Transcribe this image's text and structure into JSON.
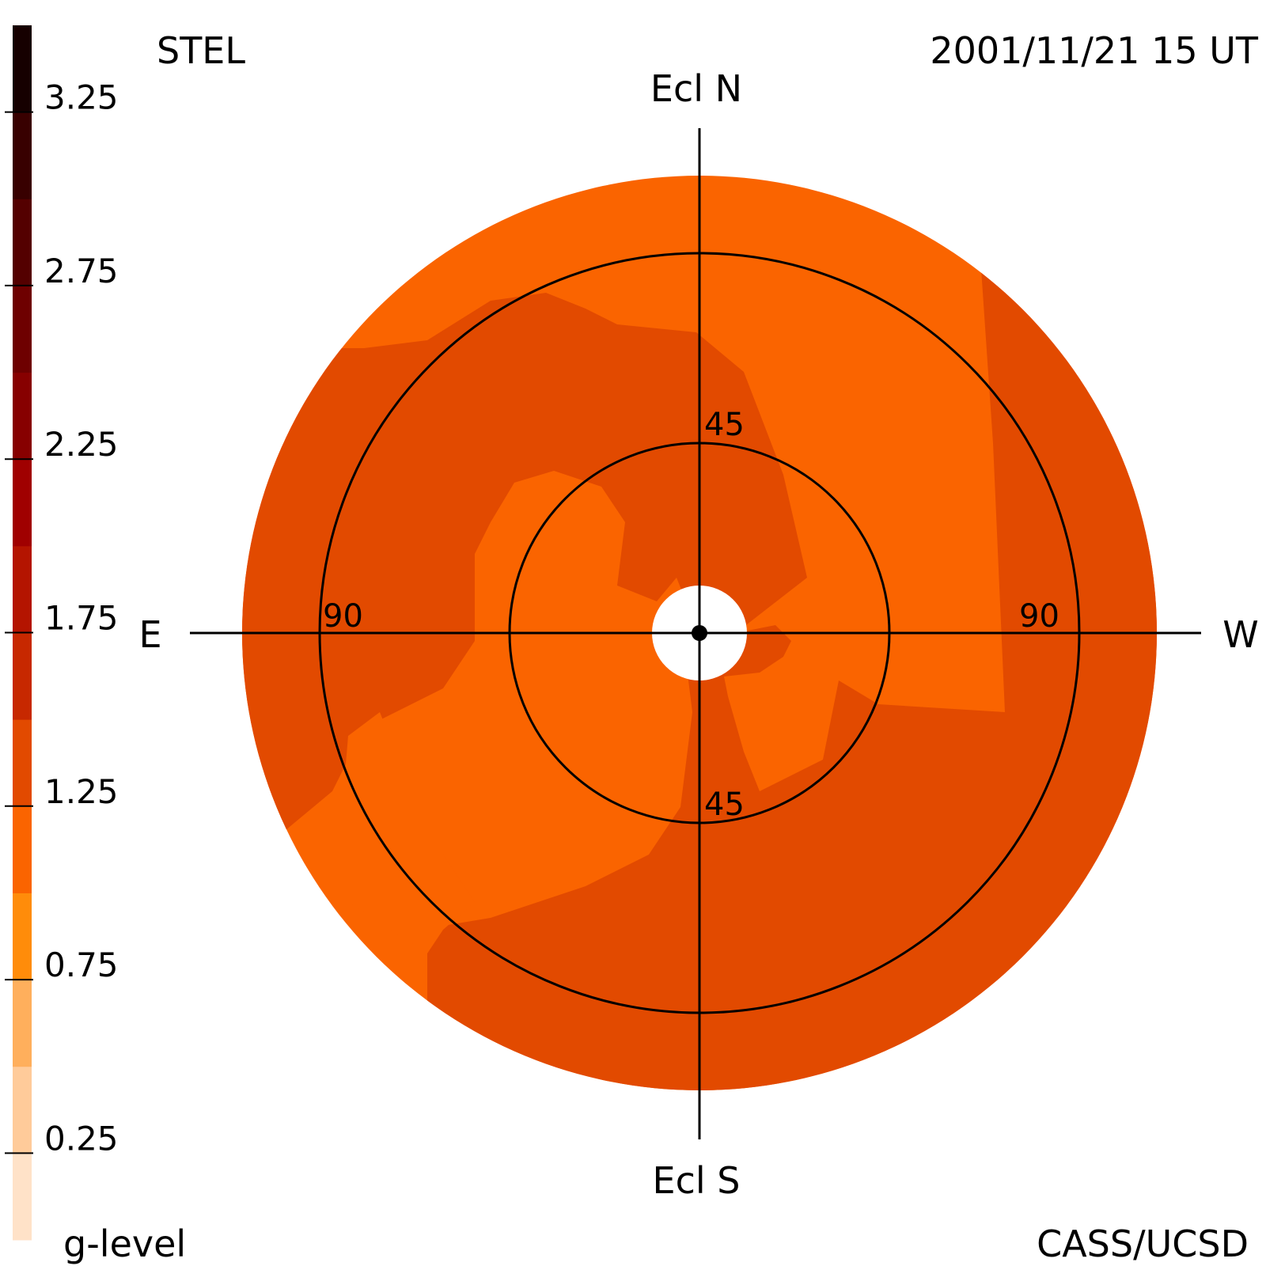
{
  "header": {
    "instrument": "STEL",
    "timestamp": "2001/11/21 15 UT"
  },
  "footer": {
    "colorbar_label": "g-level",
    "credit": "CASS/UCSD"
  },
  "directions": {
    "north": "Ecl N",
    "south": "Ecl S",
    "east": "E",
    "west": "W"
  },
  "colors": {
    "low_level": "#fa6400",
    "high_level": "#e24a00",
    "axes": "#000000"
  },
  "chart_data": {
    "type": "heatmap",
    "projection": "polar sky map (fisheye), ecliptic north up, east left",
    "colorbar": {
      "label": "g-level",
      "range": [
        0,
        3.5
      ],
      "ticks": [
        {
          "value": 3.25,
          "label": "3.25"
        },
        {
          "value": 2.75,
          "label": "2.75"
        },
        {
          "value": 2.25,
          "label": "2.25"
        },
        {
          "value": 1.75,
          "label": "1.75"
        },
        {
          "value": 1.25,
          "label": "1.25"
        },
        {
          "value": 0.75,
          "label": "0.75"
        },
        {
          "value": 0.25,
          "label": "0.25"
        }
      ],
      "bands": [
        {
          "from": 0.0,
          "to": 0.25,
          "color": "#ffe2c8"
        },
        {
          "from": 0.25,
          "to": 0.5,
          "color": "#ffcb9a"
        },
        {
          "from": 0.5,
          "to": 0.75,
          "color": "#ffaf5c"
        },
        {
          "from": 0.75,
          "to": 1.0,
          "color": "#ff8c0a"
        },
        {
          "from": 1.0,
          "to": 1.25,
          "color": "#fa6400"
        },
        {
          "from": 1.25,
          "to": 1.5,
          "color": "#e24a00"
        },
        {
          "from": 1.5,
          "to": 1.75,
          "color": "#c72800"
        },
        {
          "from": 1.75,
          "to": 2.0,
          "color": "#b41400"
        },
        {
          "from": 2.0,
          "to": 2.25,
          "color": "#a00000"
        },
        {
          "from": 2.25,
          "to": 2.5,
          "color": "#870000"
        },
        {
          "from": 2.5,
          "to": 2.75,
          "color": "#6e0000"
        },
        {
          "from": 2.75,
          "to": 3.0,
          "color": "#540000"
        },
        {
          "from": 3.0,
          "to": 3.25,
          "color": "#380000"
        },
        {
          "from": 3.25,
          "to": 3.5,
          "color": "#160000"
        }
      ]
    },
    "rings": [
      {
        "elongation": 45,
        "label": "45"
      },
      {
        "elongation": 90,
        "label": "90"
      }
    ],
    "max_elongation": 110,
    "sun_occulter_elongation": 13
  }
}
